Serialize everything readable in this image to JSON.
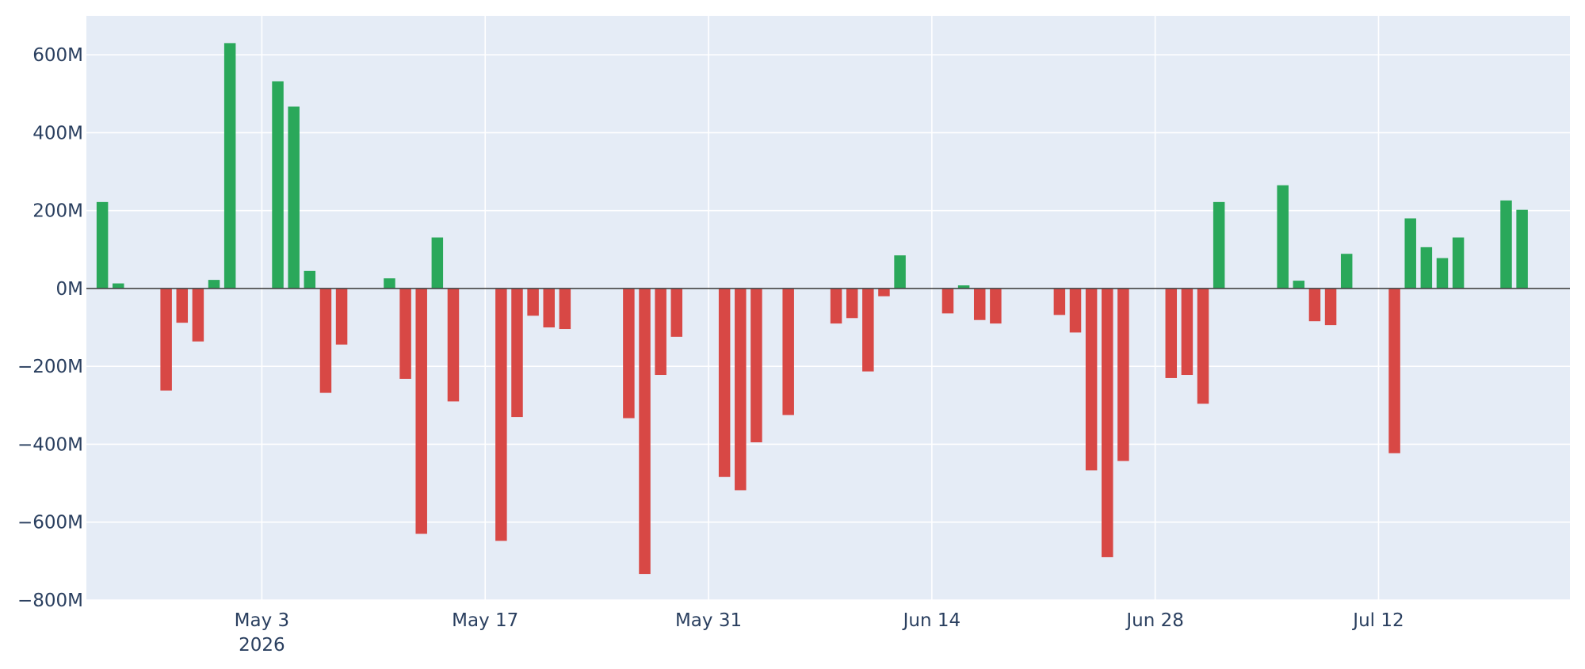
{
  "chart_data": {
    "type": "bar",
    "title": "",
    "xlabel": "",
    "ylabel": "",
    "ylim": [
      -800000000,
      700000000
    ],
    "xlim": [
      "2026-04-22",
      "2026-07-24"
    ],
    "grid": true,
    "y_ticks": [
      {
        "value": 600000000,
        "label": "600M"
      },
      {
        "value": 400000000,
        "label": "400M"
      },
      {
        "value": 200000000,
        "label": "200M"
      },
      {
        "value": 0,
        "label": "0M"
      },
      {
        "value": -200000000,
        "label": "−200M"
      },
      {
        "value": -400000000,
        "label": "−400M"
      },
      {
        "value": -600000000,
        "label": "−600M"
      },
      {
        "value": -800000000,
        "label": "−800M"
      }
    ],
    "x_ticks": [
      {
        "date": "2026-05-03",
        "label": "May 3",
        "sublabel": "2026"
      },
      {
        "date": "2026-05-17",
        "label": "May 17",
        "sublabel": ""
      },
      {
        "date": "2026-05-31",
        "label": "May 31",
        "sublabel": ""
      },
      {
        "date": "2026-06-14",
        "label": "Jun 14",
        "sublabel": ""
      },
      {
        "date": "2026-06-28",
        "label": "Jun 28",
        "sublabel": ""
      },
      {
        "date": "2026-07-12",
        "label": "Jul 12",
        "sublabel": ""
      }
    ],
    "colors": {
      "positive": "#2aa85a",
      "negative": "#d84845",
      "plot_bg": "#e5ecf6",
      "grid": "#ffffff",
      "zeroline": "#444444",
      "text": "#2a3f5f"
    },
    "points": [
      {
        "date": "2026-04-23",
        "value": 222000000
      },
      {
        "date": "2026-04-24",
        "value": 13000000
      },
      {
        "date": "2026-04-27",
        "value": -262000000
      },
      {
        "date": "2026-04-28",
        "value": -88000000
      },
      {
        "date": "2026-04-29",
        "value": -136000000
      },
      {
        "date": "2026-04-30",
        "value": 22000000
      },
      {
        "date": "2026-05-01",
        "value": 630000000
      },
      {
        "date": "2026-05-04",
        "value": 532000000
      },
      {
        "date": "2026-05-05",
        "value": 467000000
      },
      {
        "date": "2026-05-06",
        "value": 45000000
      },
      {
        "date": "2026-05-07",
        "value": -268000000
      },
      {
        "date": "2026-05-08",
        "value": -144000000
      },
      {
        "date": "2026-05-11",
        "value": 26000000
      },
      {
        "date": "2026-05-12",
        "value": -232000000
      },
      {
        "date": "2026-05-13",
        "value": -630000000
      },
      {
        "date": "2026-05-14",
        "value": 131000000
      },
      {
        "date": "2026-05-15",
        "value": -290000000
      },
      {
        "date": "2026-05-18",
        "value": -648000000
      },
      {
        "date": "2026-05-19",
        "value": -330000000
      },
      {
        "date": "2026-05-20",
        "value": -70000000
      },
      {
        "date": "2026-05-21",
        "value": -100000000
      },
      {
        "date": "2026-05-22",
        "value": -104000000
      },
      {
        "date": "2026-05-26",
        "value": -333000000
      },
      {
        "date": "2026-05-27",
        "value": -733000000
      },
      {
        "date": "2026-05-28",
        "value": -222000000
      },
      {
        "date": "2026-05-29",
        "value": -124000000
      },
      {
        "date": "2026-06-01",
        "value": -484000000
      },
      {
        "date": "2026-06-02",
        "value": -518000000
      },
      {
        "date": "2026-06-03",
        "value": -395000000
      },
      {
        "date": "2026-06-05",
        "value": -325000000
      },
      {
        "date": "2026-06-08",
        "value": -90000000
      },
      {
        "date": "2026-06-09",
        "value": -76000000
      },
      {
        "date": "2026-06-10",
        "value": -213000000
      },
      {
        "date": "2026-06-11",
        "value": -20000000
      },
      {
        "date": "2026-06-12",
        "value": 85000000
      },
      {
        "date": "2026-06-15",
        "value": -64000000
      },
      {
        "date": "2026-06-16",
        "value": 8000000
      },
      {
        "date": "2026-06-17",
        "value": -81000000
      },
      {
        "date": "2026-06-18",
        "value": -90000000
      },
      {
        "date": "2026-06-22",
        "value": -68000000
      },
      {
        "date": "2026-06-23",
        "value": -113000000
      },
      {
        "date": "2026-06-24",
        "value": -467000000
      },
      {
        "date": "2026-06-25",
        "value": -690000000
      },
      {
        "date": "2026-06-26",
        "value": -443000000
      },
      {
        "date": "2026-06-29",
        "value": -230000000
      },
      {
        "date": "2026-06-30",
        "value": -222000000
      },
      {
        "date": "2026-07-01",
        "value": -296000000
      },
      {
        "date": "2026-07-02",
        "value": 222000000
      },
      {
        "date": "2026-07-06",
        "value": 265000000
      },
      {
        "date": "2026-07-07",
        "value": 20000000
      },
      {
        "date": "2026-07-08",
        "value": -84000000
      },
      {
        "date": "2026-07-09",
        "value": -94000000
      },
      {
        "date": "2026-07-10",
        "value": 89000000
      },
      {
        "date": "2026-07-13",
        "value": -423000000
      },
      {
        "date": "2026-07-14",
        "value": 180000000
      },
      {
        "date": "2026-07-15",
        "value": 106000000
      },
      {
        "date": "2026-07-16",
        "value": 78000000
      },
      {
        "date": "2026-07-17",
        "value": 131000000
      },
      {
        "date": "2026-07-20",
        "value": 226000000
      },
      {
        "date": "2026-07-21",
        "value": 202000000
      }
    ]
  }
}
